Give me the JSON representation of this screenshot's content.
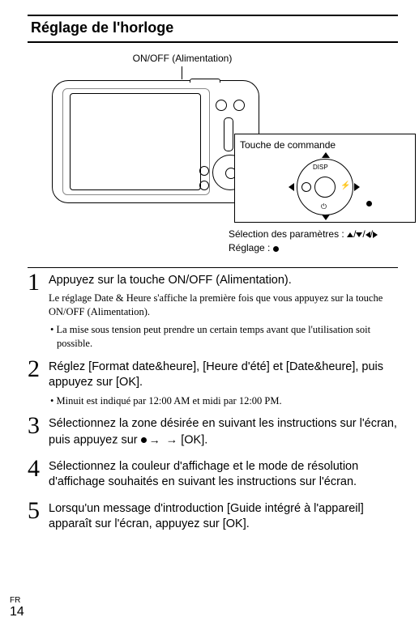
{
  "title": "Réglage de l'horloge",
  "figure": {
    "power_label": "ON/OFF (Alimentation)",
    "callout_title": "Touche de commande",
    "disp_label": "DISP",
    "caption_line1": "Sélection des paramètres : ",
    "caption_line2_prefix": "Réglage : "
  },
  "steps": [
    {
      "n": "1",
      "lead": "Appuyez sur la touche ON/OFF (Alimentation).",
      "sub": "Le réglage Date & Heure s'affiche la première fois que vous appuyez sur la touche ON/OFF (Alimentation).",
      "bullet": "• La mise sous tension peut prendre un certain temps avant que l'utilisation soit possible."
    },
    {
      "n": "2",
      "lead": "Réglez [Format date&heure], [Heure d'été] et [Date&heure], puis appuyez sur [OK].",
      "bullet": "• Minuit est indiqué par 12:00 AM et midi par 12:00 PM."
    },
    {
      "n": "3",
      "lead_a": "Sélectionnez la zone désirée en suivant les instructions sur l'écran, puis appuyez sur ",
      "lead_b": " → [OK]."
    },
    {
      "n": "4",
      "lead": "Sélectionnez la couleur d'affichage et le mode de résolution d'affichage souhaités en suivant les instructions sur l'écran."
    },
    {
      "n": "5",
      "lead": "Lorsqu'un message d'introduction [Guide intégré à l'appareil] apparaît sur l'écran, appuyez sur [OK]."
    }
  ],
  "footer": {
    "lang": "FR",
    "page": "14"
  }
}
